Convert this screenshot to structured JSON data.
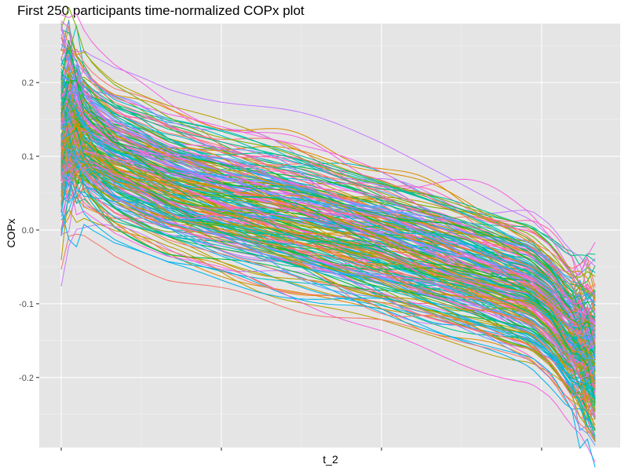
{
  "chart_data": {
    "type": "line",
    "title": "First 250 participants time-normalized COPx plot",
    "xlabel": "t_2",
    "ylabel": "COPx",
    "x_tick_labels": [
      "",
      "",
      "",
      ""
    ],
    "y_ticks": [
      {
        "value": 0.2,
        "label": "0.2"
      },
      {
        "value": 0.1,
        "label": "0.1"
      },
      {
        "value": 0.0,
        "label": "0.0"
      },
      {
        "value": -0.1,
        "label": "-0.1"
      },
      {
        "value": -0.2,
        "label": "-0.2"
      }
    ],
    "xlim": [
      0,
      1
    ],
    "ylim": [
      -0.295,
      0.28
    ],
    "x_major_ticks": [
      0.0,
      0.3,
      0.6,
      0.9
    ],
    "x_minor_ticks": [
      0.15,
      0.45,
      0.75
    ],
    "y_minor_ticks": [
      0.25,
      0.15,
      0.05,
      -0.05,
      -0.15,
      -0.25
    ],
    "grid": true,
    "legend": "none",
    "background": "#e5e5e5",
    "palette": [
      "#f8766d",
      "#de8c00",
      "#b79f00",
      "#7cae00",
      "#00ba38",
      "#00c08b",
      "#00bfc4",
      "#00b4f0",
      "#619cff",
      "#c77cff",
      "#f564e3",
      "#ff64b0"
    ],
    "n_series": 250,
    "series_template": {
      "x": [
        0.0,
        0.01,
        0.03,
        0.06,
        0.1,
        0.2,
        0.3,
        0.4,
        0.5,
        0.6,
        0.7,
        0.8,
        0.88,
        0.92,
        0.95,
        0.98,
        1.0
      ],
      "y_mean": [
        0.13,
        0.15,
        0.135,
        0.115,
        0.095,
        0.065,
        0.045,
        0.025,
        0.005,
        -0.015,
        -0.04,
        -0.065,
        -0.085,
        -0.11,
        -0.14,
        -0.16,
        -0.175
      ],
      "y_spread_sd": 0.045
    }
  }
}
